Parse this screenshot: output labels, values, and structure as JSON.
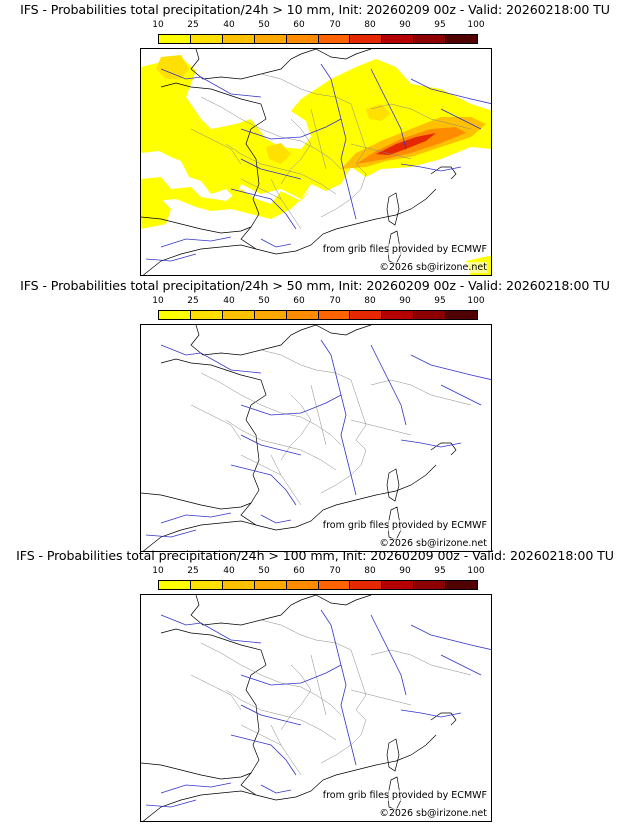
{
  "scale": {
    "ticks": [
      "10",
      "25",
      "40",
      "50",
      "60",
      "70",
      "80",
      "90",
      "95",
      "100"
    ],
    "colors": [
      "#ffff00",
      "#ffe000",
      "#ffc000",
      "#ffa800",
      "#ff8c00",
      "#ff6400",
      "#e62800",
      "#b40000",
      "#8c0000",
      "#500000"
    ]
  },
  "panels": [
    {
      "title": "IFS - Probabilities total precipitation/24h > 10 mm, Init: 20260209 00z - Valid: 20260218:00 TU",
      "credit": "from grib files provided by ECMWF",
      "copyright": "©2026 sb@irizone.net"
    },
    {
      "title": "IFS - Probabilities total precipitation/24h > 50 mm, Init: 20260209 00z - Valid: 20260218:00 TU",
      "credit": "from grib files provided by ECMWF",
      "copyright": "©2026 sb@irizone.net"
    },
    {
      "title": "IFS - Probabilities total precipitation/24h > 100 mm, Init: 20260209 00z - Valid: 20260218:00 TU",
      "credit": "from grib files provided by ECMWF",
      "copyright": "©2026 sb@irizone.net"
    }
  ]
}
